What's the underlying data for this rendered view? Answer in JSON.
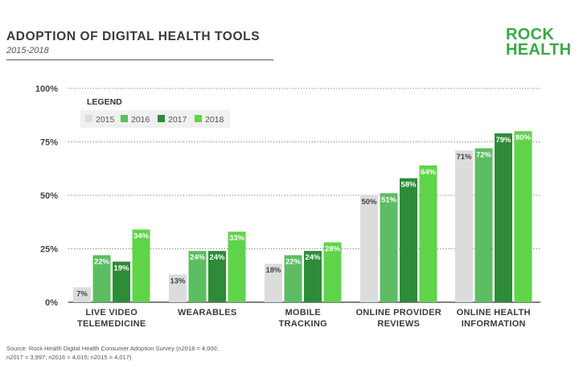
{
  "header": {
    "title": "ADOPTION OF DIGITAL HEALTH TOOLS",
    "subtitle": "2015-2018",
    "logo_line1": "ROCK",
    "logo_line2": "HEALTH"
  },
  "source": {
    "line1": "Source: Rock Health Digital Health Consumer Adoption Survey (n2018 = 4,000;",
    "line2": "n2017 = 3,997; n2016 = 4,015; n2015 = 4,017)"
  },
  "colors": {
    "2015": "#dcdcdc",
    "2016": "#5cbd63",
    "2017": "#2e8b38",
    "2018": "#5fd448",
    "grid": "#777777",
    "axis": "#555555"
  },
  "chart_data": {
    "type": "bar",
    "title": "ADOPTION OF DIGITAL HEALTH TOOLS",
    "subtitle": "2015-2018",
    "legend_title": "LEGEND",
    "legend_position": "top-left",
    "categories": [
      [
        "LIVE VIDEO",
        "TELEMEDICINE"
      ],
      [
        "WEARABLES"
      ],
      [
        "MOBILE",
        "TRACKING"
      ],
      [
        "ONLINE PROVIDER",
        "REVIEWS"
      ],
      [
        "ONLINE HEALTH",
        "INFORMATION"
      ]
    ],
    "series": [
      {
        "name": "2015",
        "values": [
          7,
          13,
          18,
          50,
          71
        ]
      },
      {
        "name": "2016",
        "values": [
          22,
          24,
          22,
          51,
          72
        ]
      },
      {
        "name": "2017",
        "values": [
          19,
          24,
          24,
          58,
          79
        ]
      },
      {
        "name": "2018",
        "values": [
          34,
          33,
          28,
          64,
          80
        ]
      }
    ],
    "yticks": [
      "0%",
      "25%",
      "50%",
      "75%",
      "100%"
    ],
    "ytick_values": [
      0,
      25,
      50,
      75,
      100
    ],
    "ylim": [
      0,
      100
    ],
    "grid": true,
    "value_suffix": "%"
  }
}
